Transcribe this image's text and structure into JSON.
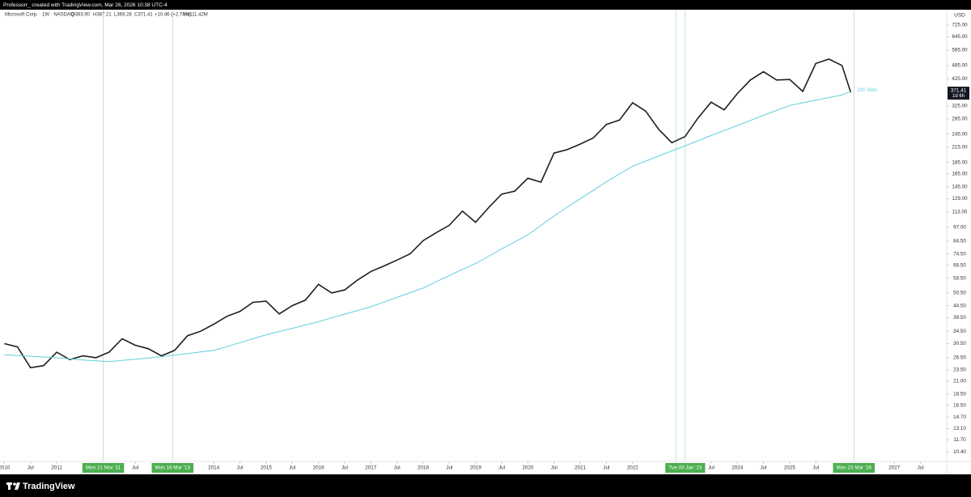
{
  "header": {
    "caption": "Professorr_ created with TradingView.com, Mar 26, 2026 10:38 UTC-4"
  },
  "footer": {
    "brand": "TradingView"
  },
  "legend": {
    "symbol": "Microsoft Corp. · 1W · NASDAQ",
    "open": "O383.90",
    "high": "H387.21",
    "low": "L369.28",
    "close": "C371.41",
    "change": "+10.46 (+2.74%)",
    "volume": "Vol111.42M"
  },
  "chart_data": {
    "type": "line",
    "currency": "USD",
    "log_scale": true,
    "grid": false,
    "countdown": "1d 6h",
    "x": [
      "2010-01",
      "2010-04",
      "2010-07",
      "2010-10",
      "2011-01",
      "2011-04",
      "2011-07",
      "2011-10",
      "2012-01",
      "2012-04",
      "2012-07",
      "2012-10",
      "2013-01",
      "2013-04",
      "2013-07",
      "2013-10",
      "2014-01",
      "2014-04",
      "2014-07",
      "2014-10",
      "2015-01",
      "2015-04",
      "2015-07",
      "2015-10",
      "2016-01",
      "2016-04",
      "2016-07",
      "2016-10",
      "2017-01",
      "2017-04",
      "2017-07",
      "2017-10",
      "2018-01",
      "2018-04",
      "2018-07",
      "2018-10",
      "2019-01",
      "2019-04",
      "2019-07",
      "2019-10",
      "2020-01",
      "2020-04",
      "2020-07",
      "2020-10",
      "2021-01",
      "2021-04",
      "2021-07",
      "2021-10",
      "2022-01",
      "2022-04",
      "2022-07",
      "2022-10",
      "2023-01",
      "2023-04",
      "2023-07",
      "2023-10",
      "2024-01",
      "2024-04",
      "2024-07",
      "2024-10",
      "2025-01",
      "2025-04",
      "2025-07",
      "2025-10",
      "2026-01",
      "2026-03"
    ],
    "series": [
      {
        "name": "Microsoft Corp.",
        "color": "#1e1e1e",
        "values": [
          30.5,
          29.5,
          24,
          24.5,
          28,
          26,
          27,
          26.5,
          28,
          32,
          30,
          29,
          27,
          28.5,
          33,
          34.5,
          37,
          40,
          42,
          46,
          46.5,
          41,
          44.5,
          47,
          55,
          50.5,
          52,
          57.5,
          62.5,
          66,
          70,
          74.5,
          85,
          92,
          99,
          114,
          102,
          118,
          135,
          139,
          158,
          152,
          203,
          210,
          222,
          236,
          270,
          282,
          335,
          308,
          257,
          225,
          239,
          288,
          337,
          312,
          367,
          420,
          456,
          420,
          422,
          375,
          495,
          517,
          485,
          371.41
        ]
      },
      {
        "name": "200 SMA",
        "color": "#5fd0dc",
        "values": [
          27.3,
          27.1,
          26.9,
          26.7,
          26.5,
          26.2,
          25.9,
          25.7,
          25.5,
          25.8,
          26.1,
          26.4,
          26.8,
          27.2,
          27.6,
          28.1,
          28.5,
          29.6,
          30.8,
          32,
          33.3,
          34.4,
          35.5,
          36.7,
          37.9,
          39.4,
          40.9,
          42.4,
          44,
          46.1,
          48.3,
          50.6,
          53,
          56.5,
          60,
          63.8,
          67.7,
          72.8,
          78.2,
          83.9,
          90,
          98.9,
          108.6,
          118.5,
          129,
          140.2,
          152.4,
          165,
          178,
          187.5,
          197.4,
          207.5,
          218,
          229.5,
          241.7,
          254,
          267,
          280.8,
          295.3,
          310.3,
          326,
          334.8,
          343.7,
          352.7,
          362,
          374
        ]
      }
    ],
    "xlim": [
      "2009-12",
      "2028-01"
    ],
    "ylim": [
      9.45,
      845
    ],
    "yticks": [
      {
        "value": 725,
        "label": "725.00"
      },
      {
        "value": 645,
        "label": "645.00"
      },
      {
        "value": 565,
        "label": "565.00"
      },
      {
        "value": 485,
        "label": "485.00"
      },
      {
        "value": 425,
        "label": "425.00"
      },
      {
        "value": 325,
        "label": "325.00"
      },
      {
        "value": 285,
        "label": "285.00"
      },
      {
        "value": 245,
        "label": "245.00"
      },
      {
        "value": 215,
        "label": "215.00"
      },
      {
        "value": 185,
        "label": "185.00"
      },
      {
        "value": 165,
        "label": "165.00"
      },
      {
        "value": 145,
        "label": "145.00"
      },
      {
        "value": 129,
        "label": "129.00"
      },
      {
        "value": 113,
        "label": "113.00"
      },
      {
        "value": 97,
        "label": "97.00"
      },
      {
        "value": 84.5,
        "label": "84.50"
      },
      {
        "value": 74.5,
        "label": "74.50"
      },
      {
        "value": 66.5,
        "label": "66.50"
      },
      {
        "value": 58.5,
        "label": "58.50"
      },
      {
        "value": 50.5,
        "label": "50.50"
      },
      {
        "value": 44.5,
        "label": "44.50"
      },
      {
        "value": 39.5,
        "label": "39.50"
      },
      {
        "value": 34.5,
        "label": "34.50"
      },
      {
        "value": 30.5,
        "label": "30.50"
      },
      {
        "value": 26.5,
        "label": "26.50"
      },
      {
        "value": 23.5,
        "label": "23.50"
      },
      {
        "value": 21,
        "label": "21.00"
      },
      {
        "value": 18.5,
        "label": "18.50"
      },
      {
        "value": 16.5,
        "label": "16.50"
      },
      {
        "value": 14.7,
        "label": "14.70"
      },
      {
        "value": 13.1,
        "label": "13.10"
      },
      {
        "value": 11.7,
        "label": "11.70"
      },
      {
        "value": 10.4,
        "label": "10.40"
      }
    ],
    "xticks": [
      {
        "value": "2010-01",
        "label": "2010"
      },
      {
        "value": "2010-07",
        "label": "Jul"
      },
      {
        "value": "2011-01",
        "label": "2011"
      },
      {
        "value": "2012-07",
        "label": "Jul"
      },
      {
        "value": "2014-01",
        "label": "2014"
      },
      {
        "value": "2014-07",
        "label": "Jul"
      },
      {
        "value": "2015-01",
        "label": "2015"
      },
      {
        "value": "2015-07",
        "label": "Jul"
      },
      {
        "value": "2016-01",
        "label": "2016"
      },
      {
        "value": "2016-07",
        "label": "Jul"
      },
      {
        "value": "2017-01",
        "label": "2017"
      },
      {
        "value": "2017-07",
        "label": "Jul"
      },
      {
        "value": "2018-01",
        "label": "2018"
      },
      {
        "value": "2018-07",
        "label": "Jul"
      },
      {
        "value": "2019-01",
        "label": "2019"
      },
      {
        "value": "2019-07",
        "label": "Jul"
      },
      {
        "value": "2020-01",
        "label": "2020"
      },
      {
        "value": "2020-07",
        "label": "Jul"
      },
      {
        "value": "2021-01",
        "label": "2021"
      },
      {
        "value": "2021-07",
        "label": "Jul"
      },
      {
        "value": "2022-01",
        "label": "2022"
      },
      {
        "value": "2023-07",
        "label": "Jul"
      },
      {
        "value": "2024-01",
        "label": "2024"
      },
      {
        "value": "2024-07",
        "label": "Jul"
      },
      {
        "value": "2025-01",
        "label": "2025"
      },
      {
        "value": "2025-07",
        "label": "Jul"
      },
      {
        "value": "2027-01",
        "label": "2027"
      },
      {
        "value": "2027-07",
        "label": "Jul"
      }
    ],
    "markers": [
      {
        "x": "2011-11-21",
        "label": "Mon 21 Nov '11"
      },
      {
        "x": "2013-03-18",
        "label": "Mon 18 Mar '13"
      },
      {
        "x": "2022-11-01",
        "label": "Mo"
      },
      {
        "x": "2023-01-03",
        "label": "Tue 03 Jan '23"
      },
      {
        "x": "2026-03-23",
        "label": "Mon 23 Mar '26"
      }
    ]
  }
}
